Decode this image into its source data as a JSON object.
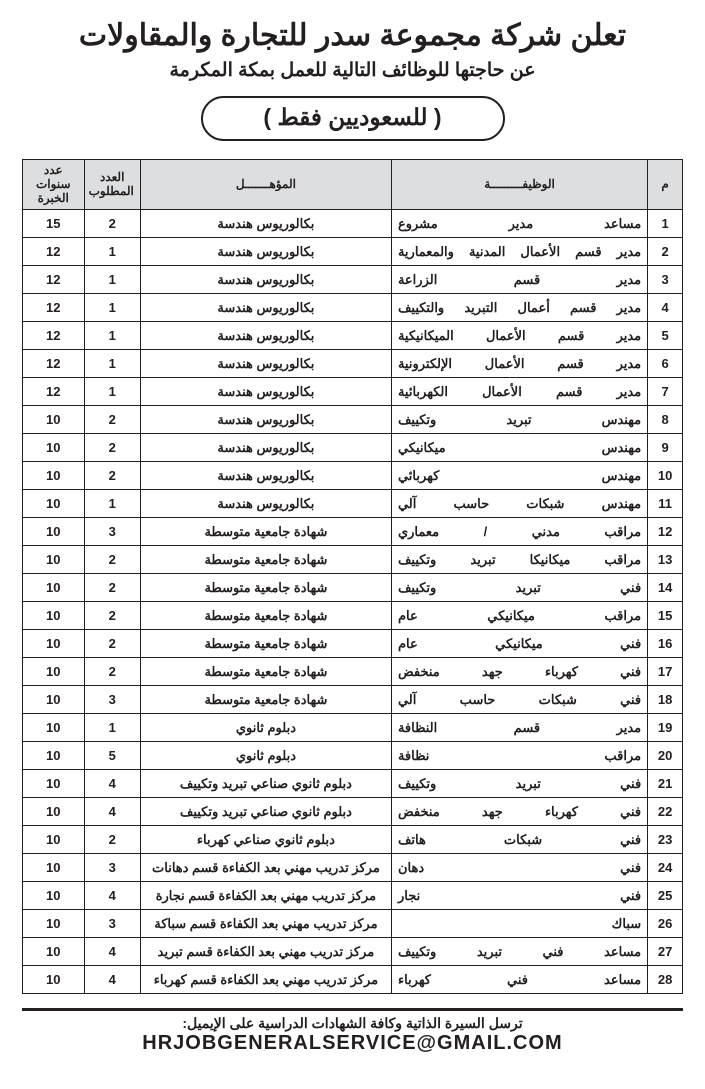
{
  "header": {
    "title": "تعلن شركة مجموعة سدر للتجارة والمقاولات",
    "subtitle": "عن حاجتها للوظائف التالية للعمل بمكة المكرمة",
    "pill": "( للسعوديين فقط )"
  },
  "columns": {
    "idx": "م",
    "job": "الوظيفـــــــــة",
    "qual": "المؤهـــــــل",
    "count": "العدد\nالمطلوب",
    "years": "عدد سنوات\nالخبرة"
  },
  "rows": [
    {
      "i": "1",
      "job": "مساعد مدير مشروع",
      "qual": "بكالوريوس هندسة",
      "count": "2",
      "years": "15"
    },
    {
      "i": "2",
      "job": "مدير قسم الأعمال المدنية والمعمارية",
      "qual": "بكالوريوس هندسة",
      "count": "1",
      "years": "12"
    },
    {
      "i": "3",
      "job": "مدير قسم الزراعة",
      "qual": "بكالوريوس هندسة",
      "count": "1",
      "years": "12"
    },
    {
      "i": "4",
      "job": "مدير قسم أعمال التبريد والتكييف",
      "qual": "بكالوريوس هندسة",
      "count": "1",
      "years": "12"
    },
    {
      "i": "5",
      "job": "مدير قسم الأعمال الميكانيكية",
      "qual": "بكالوريوس هندسة",
      "count": "1",
      "years": "12"
    },
    {
      "i": "6",
      "job": "مدير قسم الأعمال الإلكترونية",
      "qual": "بكالوريوس هندسة",
      "count": "1",
      "years": "12"
    },
    {
      "i": "7",
      "job": "مدير قسم الأعمال الكهربائية",
      "qual": "بكالوريوس هندسة",
      "count": "1",
      "years": "12"
    },
    {
      "i": "8",
      "job": "مهندس تبريد وتكييف",
      "qual": "بكالوريوس هندسة",
      "count": "2",
      "years": "10"
    },
    {
      "i": "9",
      "job": "مهندس ميكانيكي",
      "qual": "بكالوريوس هندسة",
      "count": "2",
      "years": "10"
    },
    {
      "i": "10",
      "job": "مهندس كهربائي",
      "qual": "بكالوريوس هندسة",
      "count": "2",
      "years": "10"
    },
    {
      "i": "11",
      "job": "مهندس شبكات حاسب آلي",
      "qual": "بكالوريوس هندسة",
      "count": "1",
      "years": "10"
    },
    {
      "i": "12",
      "job": "مراقب مدني / معماري",
      "qual": "شهادة جامعية متوسطة",
      "count": "3",
      "years": "10"
    },
    {
      "i": "13",
      "job": "مراقب ميكانيكا تبريد وتكييف",
      "qual": "شهادة جامعية متوسطة",
      "count": "2",
      "years": "10"
    },
    {
      "i": "14",
      "job": "فني تبريد وتكييف",
      "qual": "شهادة جامعية متوسطة",
      "count": "2",
      "years": "10"
    },
    {
      "i": "15",
      "job": "مراقب ميكانيكي عام",
      "qual": "شهادة جامعية متوسطة",
      "count": "2",
      "years": "10"
    },
    {
      "i": "16",
      "job": "فني ميكانيكي عام",
      "qual": "شهادة جامعية متوسطة",
      "count": "2",
      "years": "10"
    },
    {
      "i": "17",
      "job": "فني كهرباء جهد منخفض",
      "qual": "شهادة جامعية متوسطة",
      "count": "2",
      "years": "10"
    },
    {
      "i": "18",
      "job": "فني شبكات حاسب آلي",
      "qual": "شهادة جامعية متوسطة",
      "count": "3",
      "years": "10"
    },
    {
      "i": "19",
      "job": "مدير قسم النظافة",
      "qual": "دبلوم ثانوي",
      "count": "1",
      "years": "10"
    },
    {
      "i": "20",
      "job": "مراقب نظافة",
      "qual": "دبلوم ثانوي",
      "count": "5",
      "years": "10"
    },
    {
      "i": "21",
      "job": "فني تبريد وتكييف",
      "qual": "دبلوم ثانوي صناعي تبريد وتكييف",
      "count": "4",
      "years": "10"
    },
    {
      "i": "22",
      "job": "فني كهرباء جهد منخفض",
      "qual": "دبلوم ثانوي صناعي تبريد وتكييف",
      "count": "4",
      "years": "10"
    },
    {
      "i": "23",
      "job": "فني شبكات هاتف",
      "qual": "دبلوم ثانوي صناعي كهرباء",
      "count": "2",
      "years": "10"
    },
    {
      "i": "24",
      "job": "فني دهان",
      "qual": "مركز تدريب مهني بعد الكفاءة قسم دهانات",
      "count": "3",
      "years": "10"
    },
    {
      "i": "25",
      "job": "فني نجار",
      "qual": "مركز تدريب مهني بعد الكفاءة قسم نجارة",
      "count": "4",
      "years": "10"
    },
    {
      "i": "26",
      "job": "سباك",
      "qual": "مركز تدريب مهني بعد الكفاءة قسم سباكة",
      "count": "3",
      "years": "10"
    },
    {
      "i": "27",
      "job": "مساعد فني تبريد وتكييف",
      "qual": "مركز تدريب مهني بعد الكفاءة قسم تبريد",
      "count": "4",
      "years": "10"
    },
    {
      "i": "28",
      "job": "مساعد فني كهرباء",
      "qual": "مركز تدريب مهني بعد الكفاءة قسم كهرباء",
      "count": "4",
      "years": "10"
    }
  ],
  "footer": {
    "line1": "ترسل السيرة الذاتية وكافة الشهادات الدراسية على الإيميل:",
    "email": "HRJOBGENERALSERVICE@GMAIL.COM"
  },
  "style": {
    "header_bg": "#dcdedf",
    "border_color": "#231f20",
    "text_color": "#231f20",
    "page_bg": "#ffffff"
  }
}
